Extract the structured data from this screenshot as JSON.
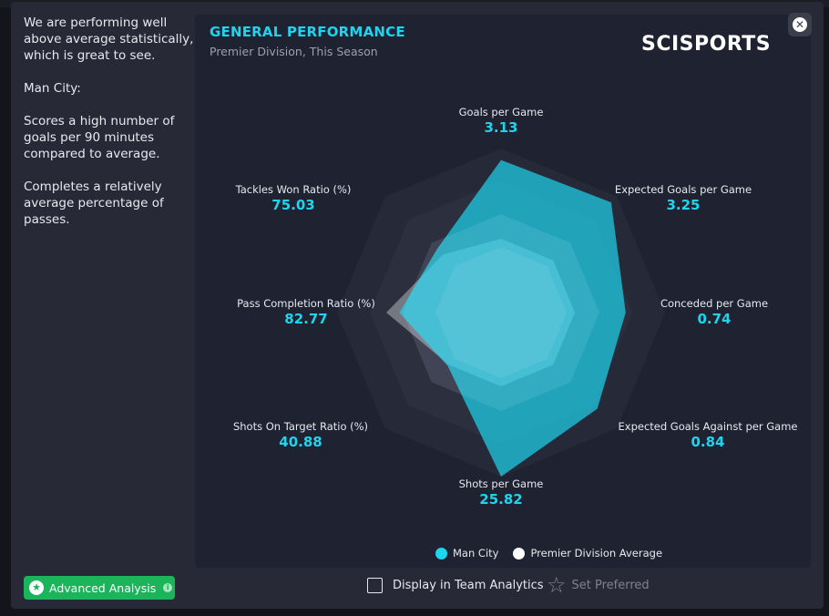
{
  "summary": {
    "paragraphs": [
      "We are performing well above average statistically, which is great to see.",
      "Man City:",
      "Scores a high number of goals per 90 minutes compared to average.",
      "Completes a relatively average percentage of passes."
    ]
  },
  "panel": {
    "title": "GENERAL PERFORMANCE",
    "subtitle": "Premier Division, This Season",
    "brand": "SCISPORTS"
  },
  "radar": {
    "colors": {
      "team": "#1ed4ef",
      "average": "#ffffff",
      "grid": "#2d3140"
    },
    "metrics": [
      {
        "label": "Goals per Game",
        "value": "3.13",
        "team": 0.93,
        "avg": 0.45
      },
      {
        "label": "Expected Goals per Game",
        "value": "3.25",
        "team": 0.95,
        "avg": 0.45
      },
      {
        "label": "Conceded per Game",
        "value": "0.74",
        "team": 0.76,
        "avg": 0.45
      },
      {
        "label": "Expected Goals Against per Game",
        "value": "0.84",
        "team": 0.83,
        "avg": 0.45
      },
      {
        "label": "Shots per Game",
        "value": "25.82",
        "team": 1.0,
        "avg": 0.45
      },
      {
        "label": "Shots On Target Ratio (%)",
        "value": "40.88",
        "team": 0.46,
        "avg": 0.45
      },
      {
        "label": "Pass Completion Ratio (%)",
        "value": "82.77",
        "team": 0.62,
        "avg": 0.7
      },
      {
        "label": "Tackles Won Ratio (%)",
        "value": "75.03",
        "team": 0.55,
        "avg": 0.5
      }
    ]
  },
  "legend": {
    "team": "Man City",
    "average": "Premier Division Average"
  },
  "footer": {
    "advanced_label": "Advanced Analysis",
    "display_label": "Display in Team Analytics",
    "preferred_label": "Set Preferred"
  },
  "icons": {
    "close": "close-icon",
    "star": "star-icon",
    "info": "info-icon",
    "checkbox": "checkbox-icon"
  }
}
